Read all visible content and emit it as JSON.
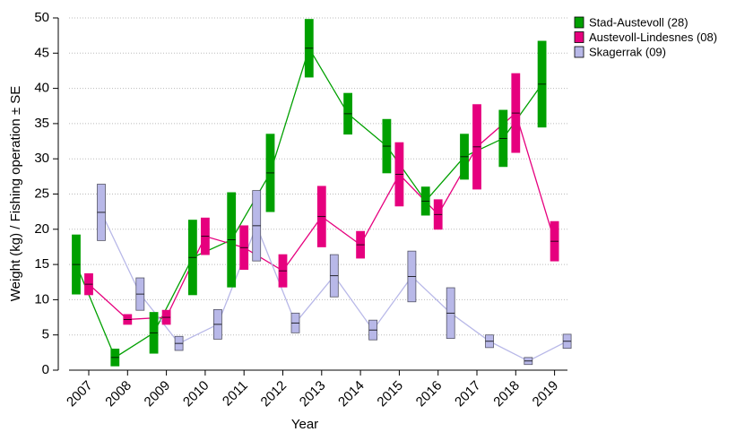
{
  "chart_data": {
    "type": "box-line",
    "x_label": "Year",
    "y_label": "Weight (kg) / Fishing operation ± SE",
    "categories": [
      "2007",
      "2008",
      "2009",
      "2010",
      "2011",
      "2012",
      "2013",
      "2014",
      "2015",
      "2016",
      "2017",
      "2018",
      "2019"
    ],
    "ylim": [
      0,
      50
    ],
    "yticks": [
      0,
      5,
      10,
      15,
      20,
      25,
      30,
      35,
      40,
      45,
      50
    ],
    "grid": true,
    "legend": "right",
    "series": [
      {
        "name": "Stad-Austevoll (28)",
        "color": "#00a000",
        "values": [
          15,
          1.8,
          5.3,
          16,
          18.5,
          28,
          45.7,
          36.4,
          31.8,
          24,
          30.3,
          32.9,
          40.6
        ],
        "se": [
          4.2,
          1.2,
          2.9,
          5.3,
          6.7,
          5.5,
          4.1,
          2.9,
          3.8,
          2,
          3.2,
          4,
          6.1
        ]
      },
      {
        "name": "Austevoll-Lindesnes (08)",
        "color": "#e6007e",
        "values": [
          12.2,
          7.2,
          7.5,
          19,
          17.4,
          14.1,
          21.8,
          17.8,
          27.8,
          22.1,
          31.7,
          36.5,
          18.3
        ],
        "se": [
          1.5,
          0.7,
          1,
          2.6,
          3.1,
          2.3,
          4.3,
          1.9,
          4.5,
          2.1,
          6,
          5.6,
          2.8
        ]
      },
      {
        "name": "Skagerrak (09)",
        "color": "#b8b8e8",
        "values": [
          22.4,
          10.8,
          3.8,
          6.5,
          20.5,
          6.7,
          13.4,
          5.7,
          13.3,
          8.1,
          4.1,
          1.3,
          4.1
        ],
        "se": [
          4,
          2.3,
          1,
          2.1,
          5,
          1.4,
          3,
          1.4,
          3.6,
          3.6,
          0.9,
          0.5,
          1
        ]
      }
    ]
  }
}
